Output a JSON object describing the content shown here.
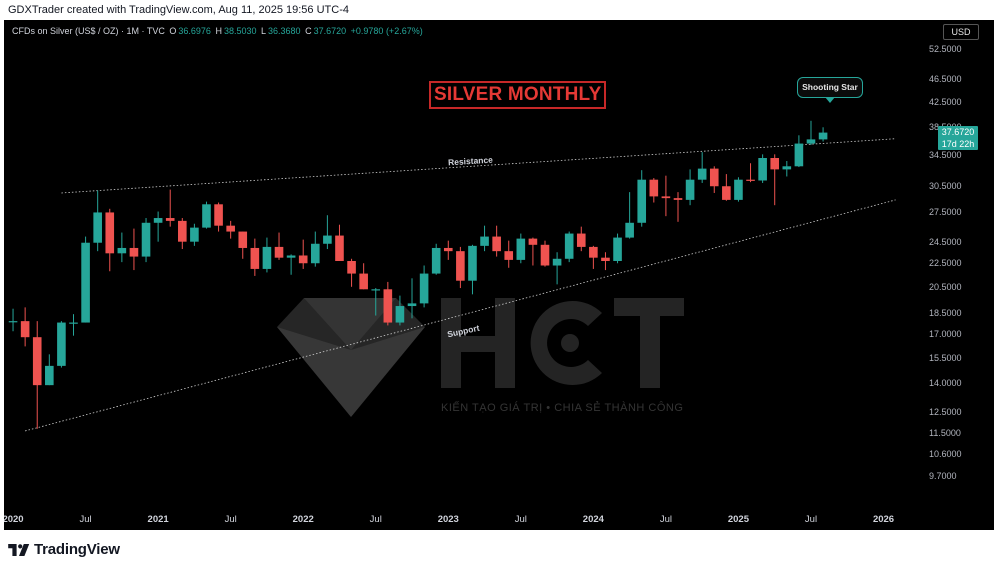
{
  "header": {
    "created_by": "GDXTrader created with TradingView.com, Aug 11, 2025 19:56 UTC-4"
  },
  "legend": {
    "symbol": "CFDs on Silver (US$ / OZ) · 1M · TVC",
    "open_label": "O",
    "open": "36.6976",
    "high_label": "H",
    "high": "38.5030",
    "low_label": "L",
    "low": "36.3680",
    "close_label": "C",
    "close": "37.6720",
    "change": "+0.9780 (+2.67%)"
  },
  "title": "SILVER MONTHLY",
  "callout": "Shooting Star",
  "currency": "USD",
  "price_tag": {
    "price": "37.6720",
    "countdown": "17d 22h"
  },
  "annotations": {
    "resistance": "Resistance",
    "support": "Support"
  },
  "watermark": {
    "subtitle": "KIẾN TẠO GIÁ TRỊ • CHIA SẺ THÀNH CÔNG"
  },
  "footer": {
    "brand": "TradingView"
  },
  "colors": {
    "up": "#26a69a",
    "down": "#ef5350",
    "background": "#000000",
    "title": "#e53935"
  },
  "chart_data": {
    "type": "candlestick",
    "y_scale": "log",
    "ylim": [
      8.9,
      53.5
    ],
    "x_range": [
      "2020-01",
      "2026-03"
    ],
    "y_ticks": [
      "52.5000",
      "46.5000",
      "42.5000",
      "38.5000",
      "34.5000",
      "30.5000",
      "27.5000",
      "24.5000",
      "22.5000",
      "20.5000",
      "18.5000",
      "17.0000",
      "15.5000",
      "14.0000",
      "12.5000",
      "11.5000",
      "10.6000",
      "9.7000"
    ],
    "x_ticks": [
      {
        "label": "2020",
        "t": "2020-01",
        "year": true
      },
      {
        "label": "Jul",
        "t": "2020-07"
      },
      {
        "label": "2021",
        "t": "2021-01",
        "year": true
      },
      {
        "label": "Jul",
        "t": "2021-07"
      },
      {
        "label": "2022",
        "t": "2022-01",
        "year": true
      },
      {
        "label": "Jul",
        "t": "2022-07"
      },
      {
        "label": "2023",
        "t": "2023-01",
        "year": true
      },
      {
        "label": "Jul",
        "t": "2023-07"
      },
      {
        "label": "2024",
        "t": "2024-01",
        "year": true
      },
      {
        "label": "Jul",
        "t": "2024-07"
      },
      {
        "label": "2025",
        "t": "2025-01",
        "year": true
      },
      {
        "label": "Jul",
        "t": "2025-07"
      },
      {
        "label": "2026",
        "t": "2026-01",
        "year": true
      }
    ],
    "candles": [
      {
        "t": "2020-01",
        "o": 17.9,
        "h": 18.8,
        "l": 17.2,
        "c": 17.9
      },
      {
        "t": "2020-02",
        "o": 17.9,
        "h": 18.9,
        "l": 16.2,
        "c": 16.8
      },
      {
        "t": "2020-03",
        "o": 16.8,
        "h": 17.9,
        "l": 11.7,
        "c": 13.9
      },
      {
        "t": "2020-04",
        "o": 13.9,
        "h": 15.7,
        "l": 13.9,
        "c": 15.0
      },
      {
        "t": "2020-05",
        "o": 15.0,
        "h": 17.9,
        "l": 14.9,
        "c": 17.8
      },
      {
        "t": "2020-06",
        "o": 17.8,
        "h": 18.4,
        "l": 16.9,
        "c": 17.8
      },
      {
        "t": "2020-07",
        "o": 17.8,
        "h": 25.0,
        "l": 17.8,
        "c": 24.4
      },
      {
        "t": "2020-08",
        "o": 24.4,
        "h": 30.0,
        "l": 23.6,
        "c": 27.5
      },
      {
        "t": "2020-09",
        "o": 27.5,
        "h": 27.9,
        "l": 21.8,
        "c": 23.4
      },
      {
        "t": "2020-10",
        "o": 23.4,
        "h": 25.4,
        "l": 22.6,
        "c": 23.9
      },
      {
        "t": "2020-11",
        "o": 23.9,
        "h": 25.8,
        "l": 21.9,
        "c": 23.1
      },
      {
        "t": "2020-12",
        "o": 23.1,
        "h": 26.9,
        "l": 22.6,
        "c": 26.4
      },
      {
        "t": "2021-01",
        "o": 26.4,
        "h": 27.6,
        "l": 24.5,
        "c": 26.9
      },
      {
        "t": "2021-02",
        "o": 26.9,
        "h": 30.1,
        "l": 26.0,
        "c": 26.6
      },
      {
        "t": "2021-03",
        "o": 26.6,
        "h": 26.9,
        "l": 23.8,
        "c": 24.5
      },
      {
        "t": "2021-04",
        "o": 24.5,
        "h": 26.3,
        "l": 24.1,
        "c": 25.9
      },
      {
        "t": "2021-05",
        "o": 25.9,
        "h": 28.7,
        "l": 25.8,
        "c": 28.4
      },
      {
        "t": "2021-06",
        "o": 28.4,
        "h": 28.6,
        "l": 25.5,
        "c": 26.1
      },
      {
        "t": "2021-07",
        "o": 26.1,
        "h": 26.6,
        "l": 24.8,
        "c": 25.5
      },
      {
        "t": "2021-08",
        "o": 25.5,
        "h": 25.5,
        "l": 22.9,
        "c": 23.9
      },
      {
        "t": "2021-09",
        "o": 23.9,
        "h": 24.8,
        "l": 21.4,
        "c": 22.0
      },
      {
        "t": "2021-10",
        "o": 22.0,
        "h": 24.9,
        "l": 21.7,
        "c": 24.0
      },
      {
        "t": "2021-11",
        "o": 24.0,
        "h": 25.4,
        "l": 22.8,
        "c": 23.0
      },
      {
        "t": "2021-12",
        "o": 23.0,
        "h": 23.3,
        "l": 21.5,
        "c": 23.2
      },
      {
        "t": "2022-01",
        "o": 23.2,
        "h": 24.7,
        "l": 22.0,
        "c": 22.5
      },
      {
        "t": "2022-02",
        "o": 22.5,
        "h": 25.5,
        "l": 22.2,
        "c": 24.3
      },
      {
        "t": "2022-03",
        "o": 24.3,
        "h": 27.2,
        "l": 23.8,
        "c": 25.1
      },
      {
        "t": "2022-04",
        "o": 25.1,
        "h": 26.2,
        "l": 22.7,
        "c": 22.7
      },
      {
        "t": "2022-05",
        "o": 22.7,
        "h": 22.9,
        "l": 20.5,
        "c": 21.6
      },
      {
        "t": "2022-06",
        "o": 21.6,
        "h": 22.5,
        "l": 20.3,
        "c": 20.3
      },
      {
        "t": "2022-07",
        "o": 20.3,
        "h": 20.4,
        "l": 18.3,
        "c": 20.3
      },
      {
        "t": "2022-08",
        "o": 20.3,
        "h": 20.9,
        "l": 17.6,
        "c": 17.8
      },
      {
        "t": "2022-09",
        "o": 17.8,
        "h": 19.8,
        "l": 17.6,
        "c": 19.0
      },
      {
        "t": "2022-10",
        "o": 19.0,
        "h": 21.2,
        "l": 18.1,
        "c": 19.2
      },
      {
        "t": "2022-11",
        "o": 19.2,
        "h": 22.3,
        "l": 18.9,
        "c": 21.6
      },
      {
        "t": "2022-12",
        "o": 21.6,
        "h": 24.3,
        "l": 21.5,
        "c": 23.9
      },
      {
        "t": "2023-01",
        "o": 23.9,
        "h": 24.6,
        "l": 22.8,
        "c": 23.6
      },
      {
        "t": "2023-02",
        "o": 23.6,
        "h": 24.0,
        "l": 20.4,
        "c": 21.0
      },
      {
        "t": "2023-03",
        "o": 21.0,
        "h": 24.2,
        "l": 19.9,
        "c": 24.1
      },
      {
        "t": "2023-04",
        "o": 24.1,
        "h": 26.1,
        "l": 23.6,
        "c": 25.0
      },
      {
        "t": "2023-05",
        "o": 25.0,
        "h": 26.1,
        "l": 23.1,
        "c": 23.6
      },
      {
        "t": "2023-06",
        "o": 23.6,
        "h": 24.6,
        "l": 22.1,
        "c": 22.8
      },
      {
        "t": "2023-07",
        "o": 22.8,
        "h": 25.3,
        "l": 22.5,
        "c": 24.8
      },
      {
        "t": "2023-08",
        "o": 24.8,
        "h": 24.9,
        "l": 22.3,
        "c": 24.2
      },
      {
        "t": "2023-09",
        "o": 24.2,
        "h": 24.6,
        "l": 22.2,
        "c": 22.3
      },
      {
        "t": "2023-10",
        "o": 22.3,
        "h": 23.5,
        "l": 20.7,
        "c": 22.9
      },
      {
        "t": "2023-11",
        "o": 22.9,
        "h": 25.5,
        "l": 22.6,
        "c": 25.3
      },
      {
        "t": "2023-12",
        "o": 25.3,
        "h": 26.0,
        "l": 23.6,
        "c": 24.0
      },
      {
        "t": "2024-01",
        "o": 24.0,
        "h": 24.1,
        "l": 22.0,
        "c": 23.0
      },
      {
        "t": "2024-02",
        "o": 23.0,
        "h": 23.5,
        "l": 21.9,
        "c": 22.7
      },
      {
        "t": "2024-03",
        "o": 22.7,
        "h": 25.3,
        "l": 22.5,
        "c": 24.9
      },
      {
        "t": "2024-04",
        "o": 24.9,
        "h": 29.8,
        "l": 24.8,
        "c": 26.4
      },
      {
        "t": "2024-05",
        "o": 26.4,
        "h": 32.5,
        "l": 26.0,
        "c": 31.3
      },
      {
        "t": "2024-06",
        "o": 31.3,
        "h": 31.5,
        "l": 28.6,
        "c": 29.3
      },
      {
        "t": "2024-07",
        "o": 29.3,
        "h": 31.8,
        "l": 27.1,
        "c": 29.1
      },
      {
        "t": "2024-08",
        "o": 29.1,
        "h": 29.8,
        "l": 26.5,
        "c": 28.9
      },
      {
        "t": "2024-09",
        "o": 28.9,
        "h": 32.6,
        "l": 28.3,
        "c": 31.3
      },
      {
        "t": "2024-10",
        "o": 31.3,
        "h": 34.9,
        "l": 30.9,
        "c": 32.7
      },
      {
        "t": "2024-11",
        "o": 32.7,
        "h": 33.0,
        "l": 29.7,
        "c": 30.5
      },
      {
        "t": "2024-12",
        "o": 30.5,
        "h": 32.0,
        "l": 28.8,
        "c": 28.9
      },
      {
        "t": "2025-01",
        "o": 28.9,
        "h": 31.6,
        "l": 28.7,
        "c": 31.3
      },
      {
        "t": "2025-02",
        "o": 31.3,
        "h": 33.4,
        "l": 31.0,
        "c": 31.2
      },
      {
        "t": "2025-03",
        "o": 31.2,
        "h": 34.6,
        "l": 30.9,
        "c": 34.1
      },
      {
        "t": "2025-04",
        "o": 34.1,
        "h": 34.6,
        "l": 28.3,
        "c": 32.6
      },
      {
        "t": "2025-05",
        "o": 32.6,
        "h": 33.7,
        "l": 31.7,
        "c": 33.0
      },
      {
        "t": "2025-06",
        "o": 33.0,
        "h": 37.3,
        "l": 32.9,
        "c": 36.1
      },
      {
        "t": "2025-07",
        "o": 36.1,
        "h": 39.5,
        "l": 35.9,
        "c": 36.7
      },
      {
        "t": "2025-08",
        "o": 36.7,
        "h": 38.5,
        "l": 36.4,
        "c": 37.7
      }
    ],
    "trendlines": [
      {
        "name": "Resistance",
        "from": {
          "t": "2020-05",
          "p": 29.7
        },
        "to": {
          "t": "2026-02",
          "p": 36.8
        }
      },
      {
        "name": "Support",
        "from": {
          "t": "2020-02",
          "p": 11.6
        },
        "to": {
          "t": "2026-02",
          "p": 28.9
        }
      }
    ]
  }
}
